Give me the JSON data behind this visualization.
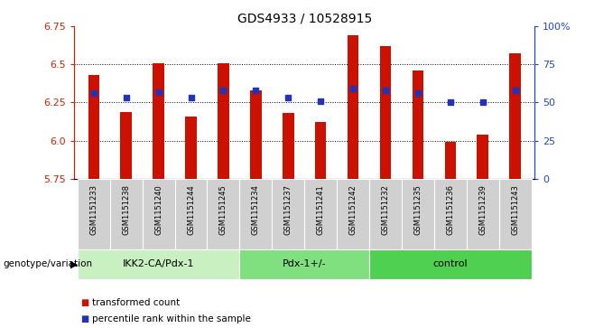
{
  "title": "GDS4933 / 10528915",
  "samples": [
    "GSM1151233",
    "GSM1151238",
    "GSM1151240",
    "GSM1151244",
    "GSM1151245",
    "GSM1151234",
    "GSM1151237",
    "GSM1151241",
    "GSM1151242",
    "GSM1151232",
    "GSM1151235",
    "GSM1151236",
    "GSM1151239",
    "GSM1151243"
  ],
  "red_values": [
    6.43,
    6.19,
    6.51,
    6.16,
    6.51,
    6.33,
    6.18,
    6.12,
    6.69,
    6.62,
    6.46,
    5.99,
    6.04,
    6.57
  ],
  "blue_values": [
    6.31,
    6.28,
    6.32,
    6.28,
    6.33,
    6.33,
    6.28,
    6.26,
    6.34,
    6.33,
    6.31,
    6.25,
    6.25,
    6.33
  ],
  "groups": [
    {
      "label": "IKK2-CA/Pdx-1",
      "start": 0,
      "end": 5,
      "color": "#c8f0c0"
    },
    {
      "label": "Pdx-1+/-",
      "start": 5,
      "end": 9,
      "color": "#80e080"
    },
    {
      "label": "control",
      "start": 9,
      "end": 14,
      "color": "#50d050"
    }
  ],
  "ylim_left": [
    5.75,
    6.75
  ],
  "ylim_right": [
    0,
    100
  ],
  "yticks_left": [
    5.75,
    6.0,
    6.25,
    6.5,
    6.75
  ],
  "yticks_right": [
    0,
    25,
    50,
    75,
    100
  ],
  "ytick_labels_right": [
    "0",
    "25",
    "50",
    "75",
    "100%"
  ],
  "bar_color": "#cc1100",
  "dot_color": "#2233bb",
  "axis_left_color": "#cc2200",
  "axis_right_color": "#2244cc",
  "bar_width": 0.35,
  "dot_size": 18,
  "legend_labels": [
    "transformed count",
    "percentile rank within the sample"
  ],
  "xlabel_label": "genotype/variation",
  "tick_bg_color": "#d0d0d0",
  "group_border_color": "#555555"
}
